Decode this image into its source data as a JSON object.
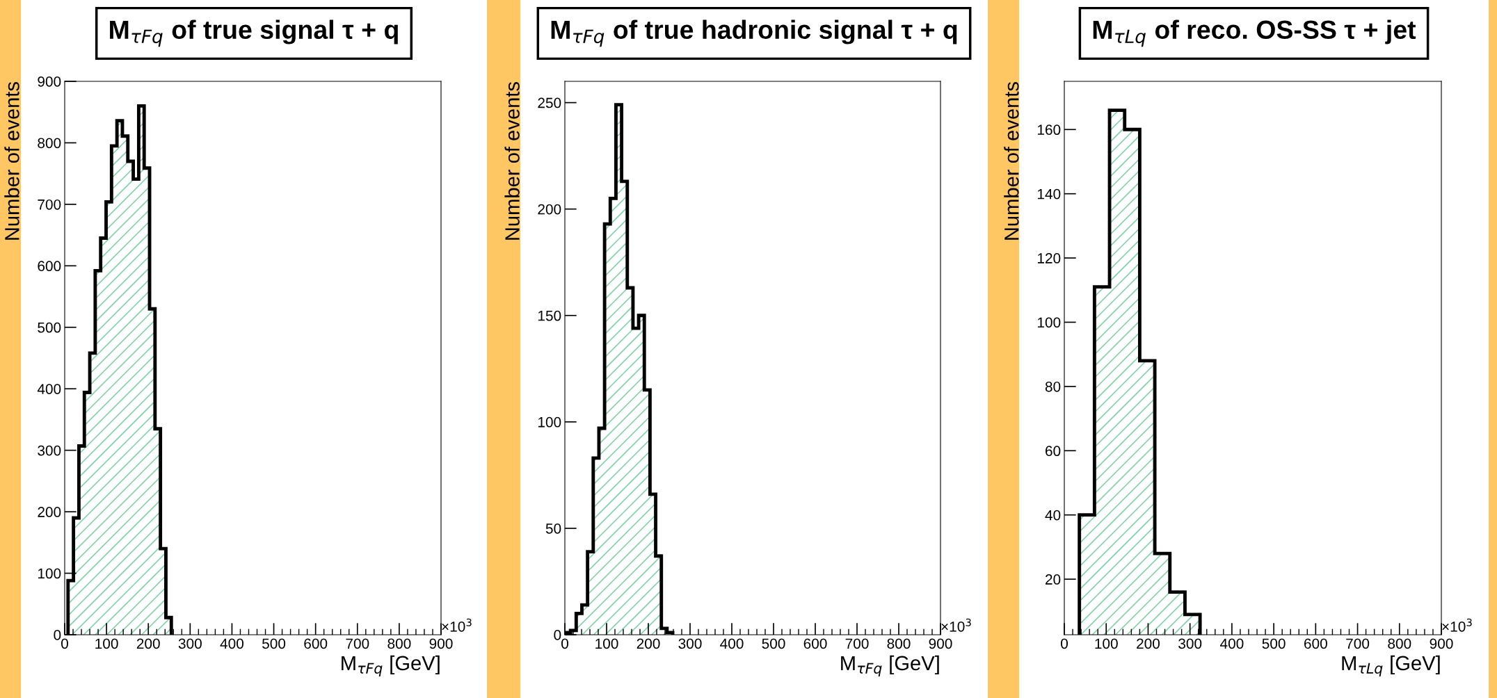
{
  "chart_data": [
    {
      "type": "histogram",
      "title": "M$_{τFq}$ of true signal τ + q",
      "xlabel": "M$_{τFq}$ [GeV]",
      "ylabel": "Number of events",
      "color": "#7fd4a8",
      "bins": [
        8,
        21,
        34,
        47,
        60,
        73,
        86,
        99,
        112,
        125,
        138,
        151,
        164,
        177,
        190,
        203,
        216,
        229,
        242,
        255
      ],
      "values": [
        88,
        190,
        307,
        394,
        458,
        592,
        645,
        704,
        795,
        836,
        811,
        770,
        741,
        860,
        759,
        530,
        335,
        140,
        28
      ],
      "xlim": [
        0,
        900
      ],
      "xticks": [
        0,
        100,
        200,
        300,
        400,
        500,
        600,
        700,
        800,
        900
      ],
      "ylim": [
        0,
        900
      ],
      "yticks": [
        0,
        100,
        200,
        300,
        400,
        500,
        600,
        700,
        800,
        900
      ],
      "annotations": [
        "×10$^{3}$"
      ]
    },
    {
      "type": "histogram",
      "title": "M$_{τFq}$ of true hadronic signal τ + q",
      "xlabel": "M$_{τFq}$ [GeV]",
      "ylabel": "Number of events",
      "color": "#7fd4a8",
      "bins": [
        0,
        13.6,
        27.2,
        40.8,
        54.4,
        68,
        81.6,
        95.2,
        108.8,
        122.4,
        136,
        149.6,
        163.2,
        176.8,
        190.4,
        204,
        217.6,
        231.2,
        244.8,
        258.4
      ],
      "values": [
        1,
        2,
        10,
        14,
        39,
        83,
        97,
        193,
        205,
        249,
        213,
        163,
        144,
        150,
        115,
        66,
        37,
        3,
        1
      ],
      "xlim": [
        0,
        900
      ],
      "xticks": [
        0,
        100,
        200,
        300,
        400,
        500,
        600,
        700,
        800,
        900
      ],
      "ylim": [
        0,
        260
      ],
      "yticks": [
        0,
        50,
        100,
        150,
        200,
        250
      ],
      "annotations": [
        "×10$^{3}$"
      ]
    },
    {
      "type": "histogram",
      "title": "M$_{τLq}$ of reco. OS-SS τ + jet",
      "xlabel": "M$_{τLq}$ [GeV]",
      "ylabel": "Number of events",
      "color": "#7fd4a8",
      "bins": [
        36,
        72,
        108,
        144,
        180,
        216,
        252,
        288,
        324
      ],
      "values": [
        40,
        111,
        166,
        160,
        88,
        28,
        16,
        9
      ],
      "xlim": [
        0,
        900
      ],
      "xticks": [
        0,
        100,
        200,
        300,
        400,
        500,
        600,
        700,
        800,
        900
      ],
      "ylim": [
        2.7,
        175
      ],
      "yticks": [
        20,
        40,
        60,
        80,
        100,
        120,
        140,
        160
      ],
      "annotations": [
        "×10$^{3}$"
      ]
    }
  ]
}
